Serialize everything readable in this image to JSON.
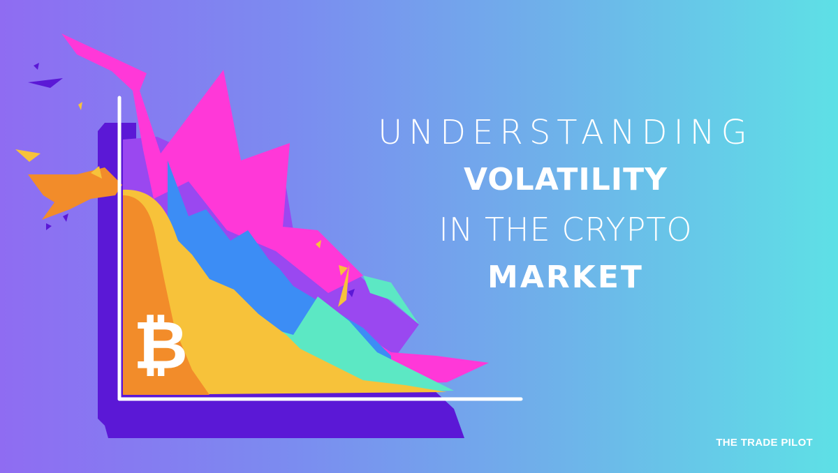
{
  "headline": {
    "line1": "UNDERSTANDING",
    "line2": "VOLATILITY",
    "line3": "IN THE CRYPTO",
    "line4": "MARKET"
  },
  "brand": {
    "name": "THE TRADE PILOT"
  },
  "illustration": {
    "logo_symbol": "₿",
    "logo_icon": "bitcoin-icon"
  },
  "colors": {
    "background_start": "#8f6cf2",
    "background_end": "#5ee0e6",
    "frame_shadow": "#5b18d6",
    "axis": "#ffffff",
    "orange": "#f28c2a",
    "yellow": "#f7c23a",
    "magenta": "#ff38d8",
    "violet": "#9a48f0",
    "blue": "#3c8df5",
    "cyan": "#5ce8c4",
    "text": "#ffffff"
  }
}
